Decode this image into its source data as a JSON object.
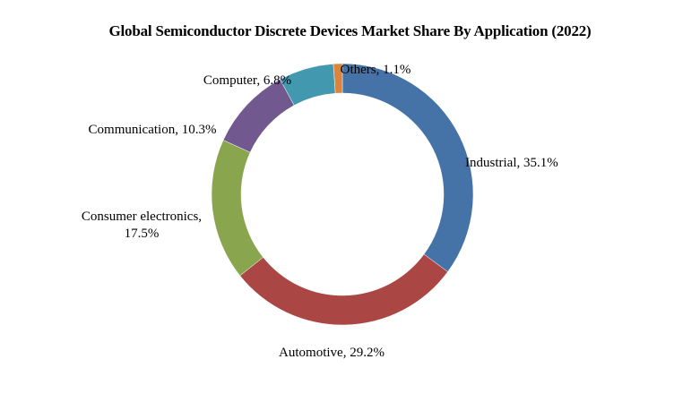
{
  "chart_data": {
    "type": "pie",
    "variant": "donut",
    "title": "Global Semiconductor Discrete Devices Market Share By Application (2022)",
    "categories": [
      "Industrial",
      "Automotive",
      "Consumer electronics",
      "Communication",
      "Computer",
      "Others"
    ],
    "values": [
      35.1,
      29.2,
      17.5,
      10.3,
      6.8,
      1.1
    ],
    "unit": "%",
    "data_labels": [
      [
        "Industrial, 35.1%"
      ],
      [
        "Automotive, 29.2%"
      ],
      [
        "Consumer electronics,",
        "17.5%"
      ],
      [
        "Communication, 10.3%"
      ],
      [
        "Computer, 6.8%"
      ],
      [
        "Others, 1.1%"
      ]
    ],
    "colors": [
      "#4572A7",
      "#AA4643",
      "#89A54E",
      "#71588F",
      "#4198AF",
      "#DB843D"
    ],
    "start_angle_deg": 0,
    "direction": "clockwise",
    "legend": "none"
  }
}
